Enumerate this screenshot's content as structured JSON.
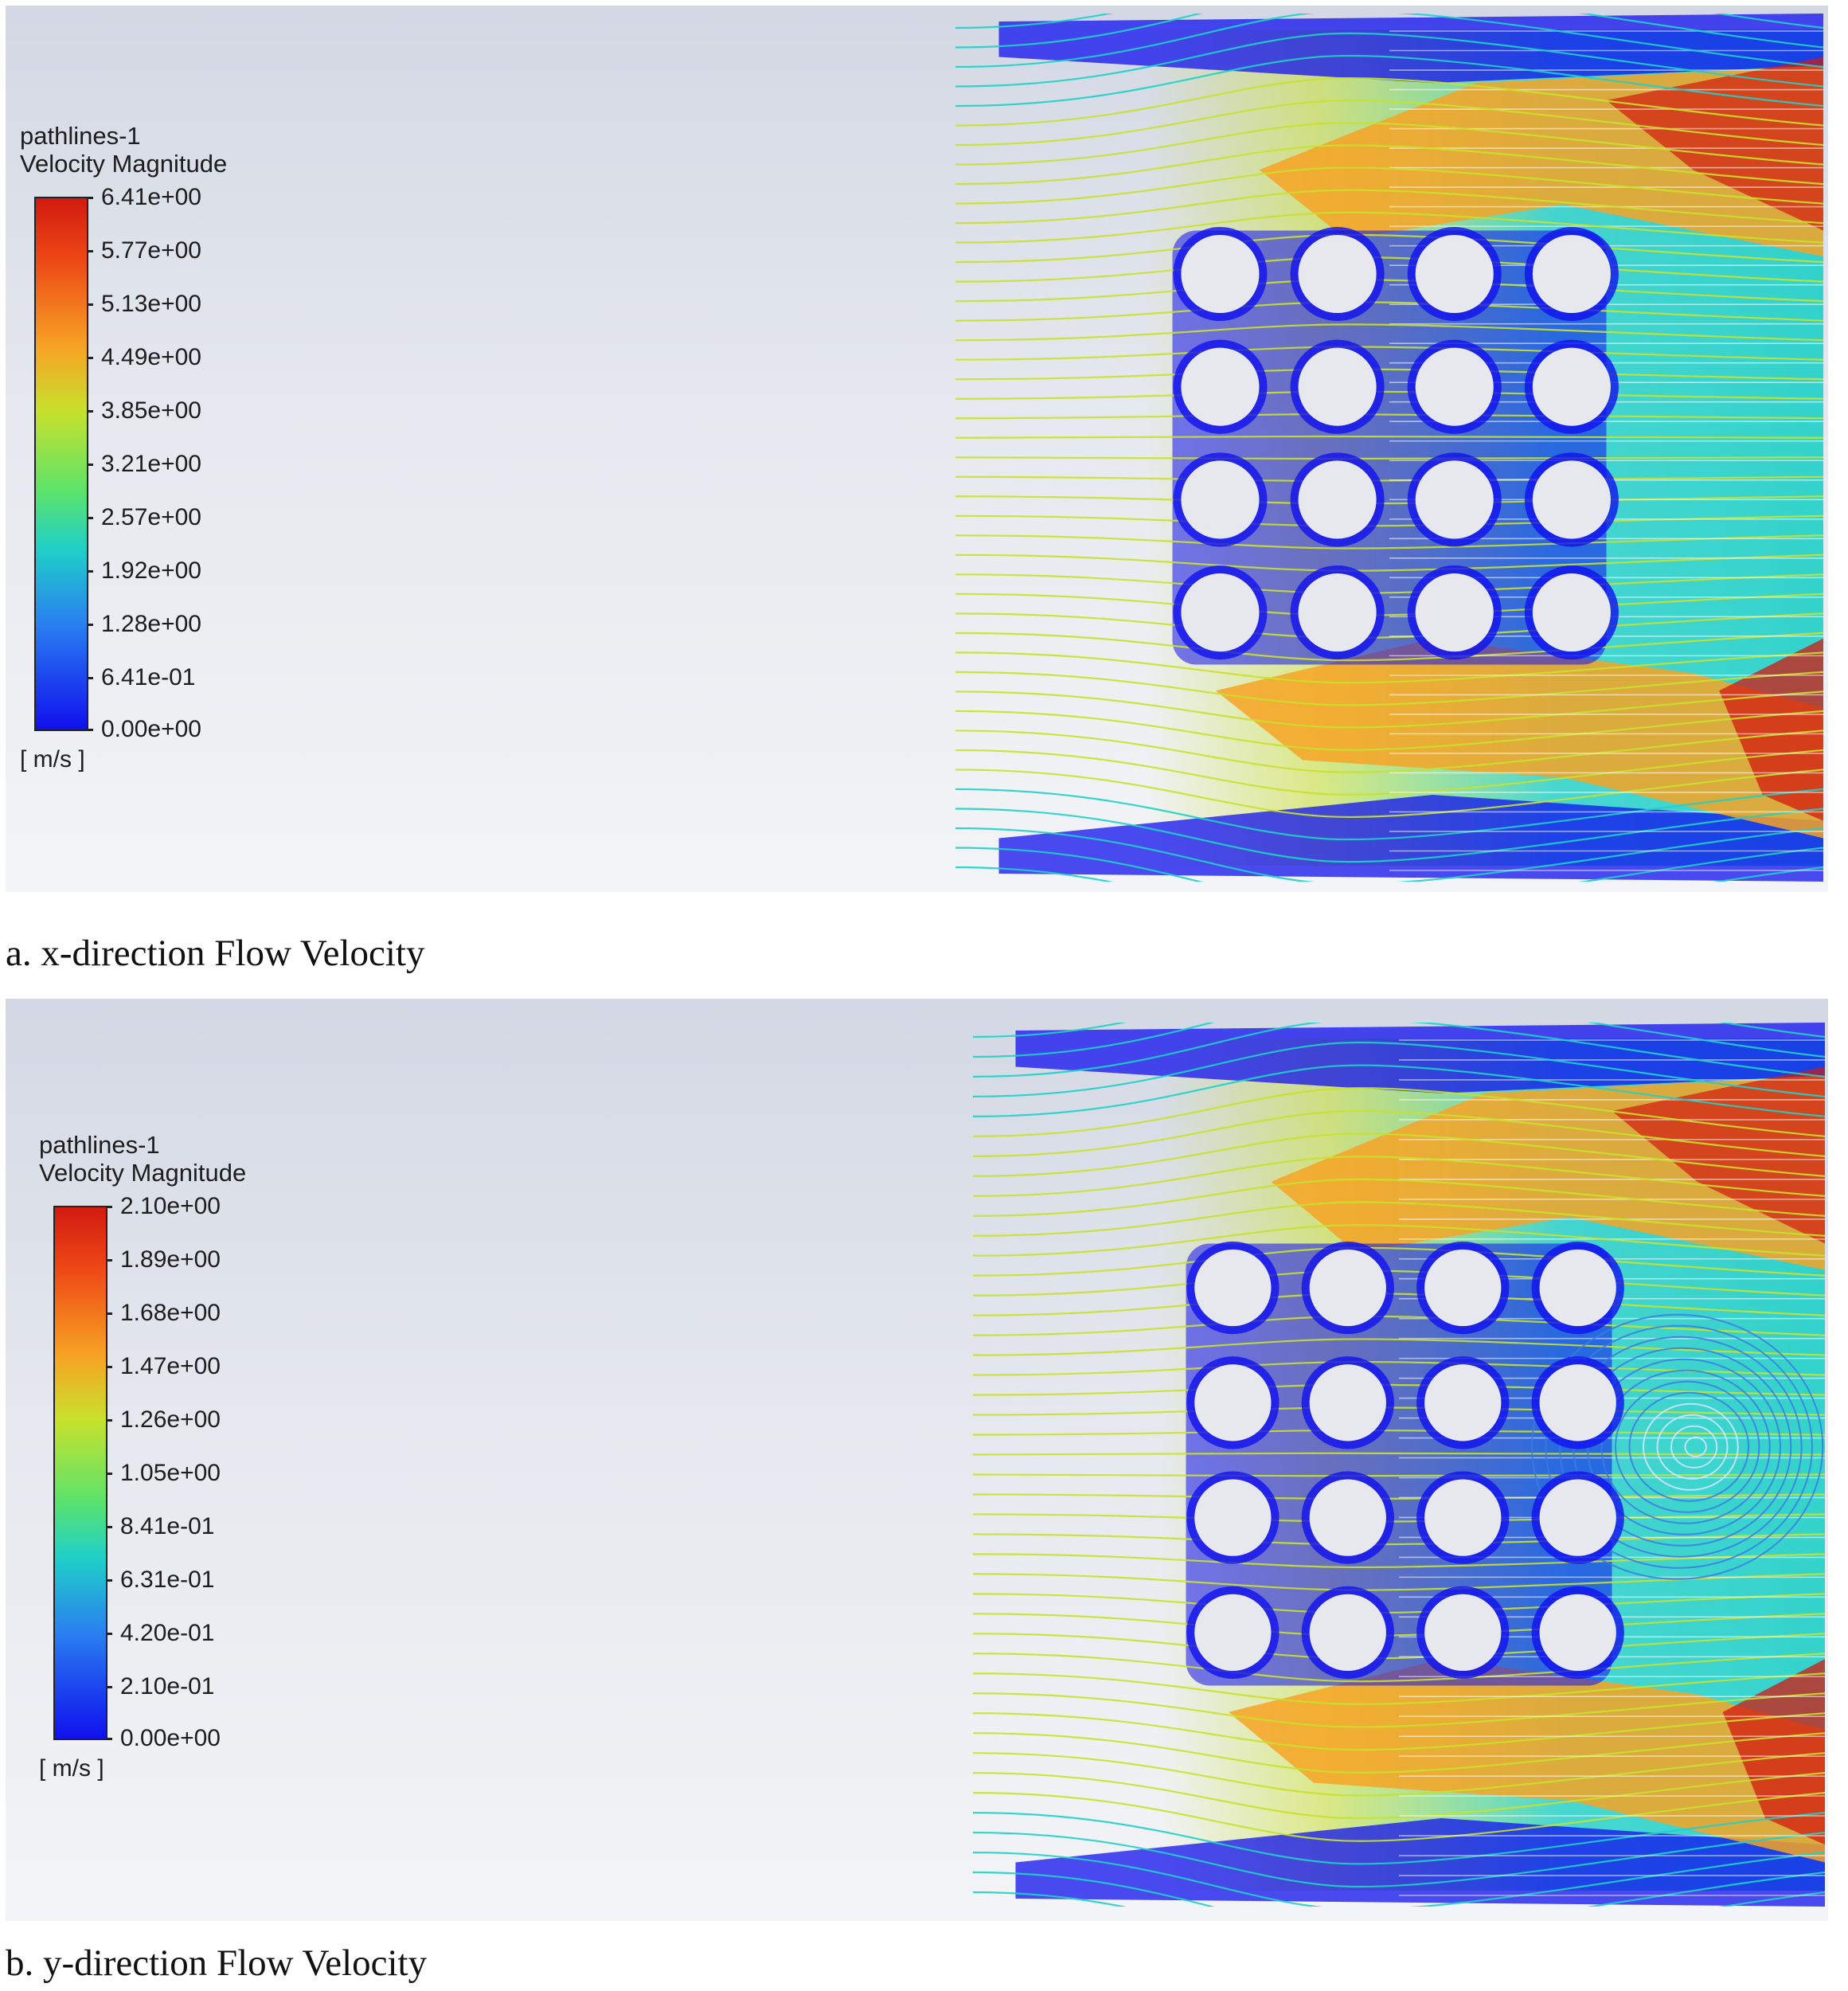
{
  "figure_a": {
    "legend": {
      "title_line1": "pathlines-1",
      "title_line2": "Velocity Magnitude",
      "ticks": [
        "6.41e+00",
        "5.77e+00",
        "5.13e+00",
        "4.49e+00",
        "3.85e+00",
        "3.21e+00",
        "2.57e+00",
        "1.92e+00",
        "1.28e+00",
        "6.41e-01",
        "0.00e+00"
      ],
      "unit": "[ m/s ]"
    },
    "caption": "a. x-direction Flow Velocity"
  },
  "figure_b": {
    "legend": {
      "title_line1": "pathlines-1",
      "title_line2": "Velocity Magnitude",
      "ticks": [
        "2.10e+00",
        "1.89e+00",
        "1.68e+00",
        "1.47e+00",
        "1.26e+00",
        "1.05e+00",
        "8.41e-01",
        "6.31e-01",
        "4.20e-01",
        "2.10e-01",
        "0.00e+00"
      ],
      "unit": "[ m/s ]"
    },
    "caption": "b. y-direction Flow Velocity"
  },
  "colors": {
    "max": "#d21a10",
    "high": "#f7a324",
    "mid": "#c8e12c",
    "lowmid": "#1fd0c8",
    "min": "#1010ee",
    "obstacle": "#e6e8ee"
  }
}
